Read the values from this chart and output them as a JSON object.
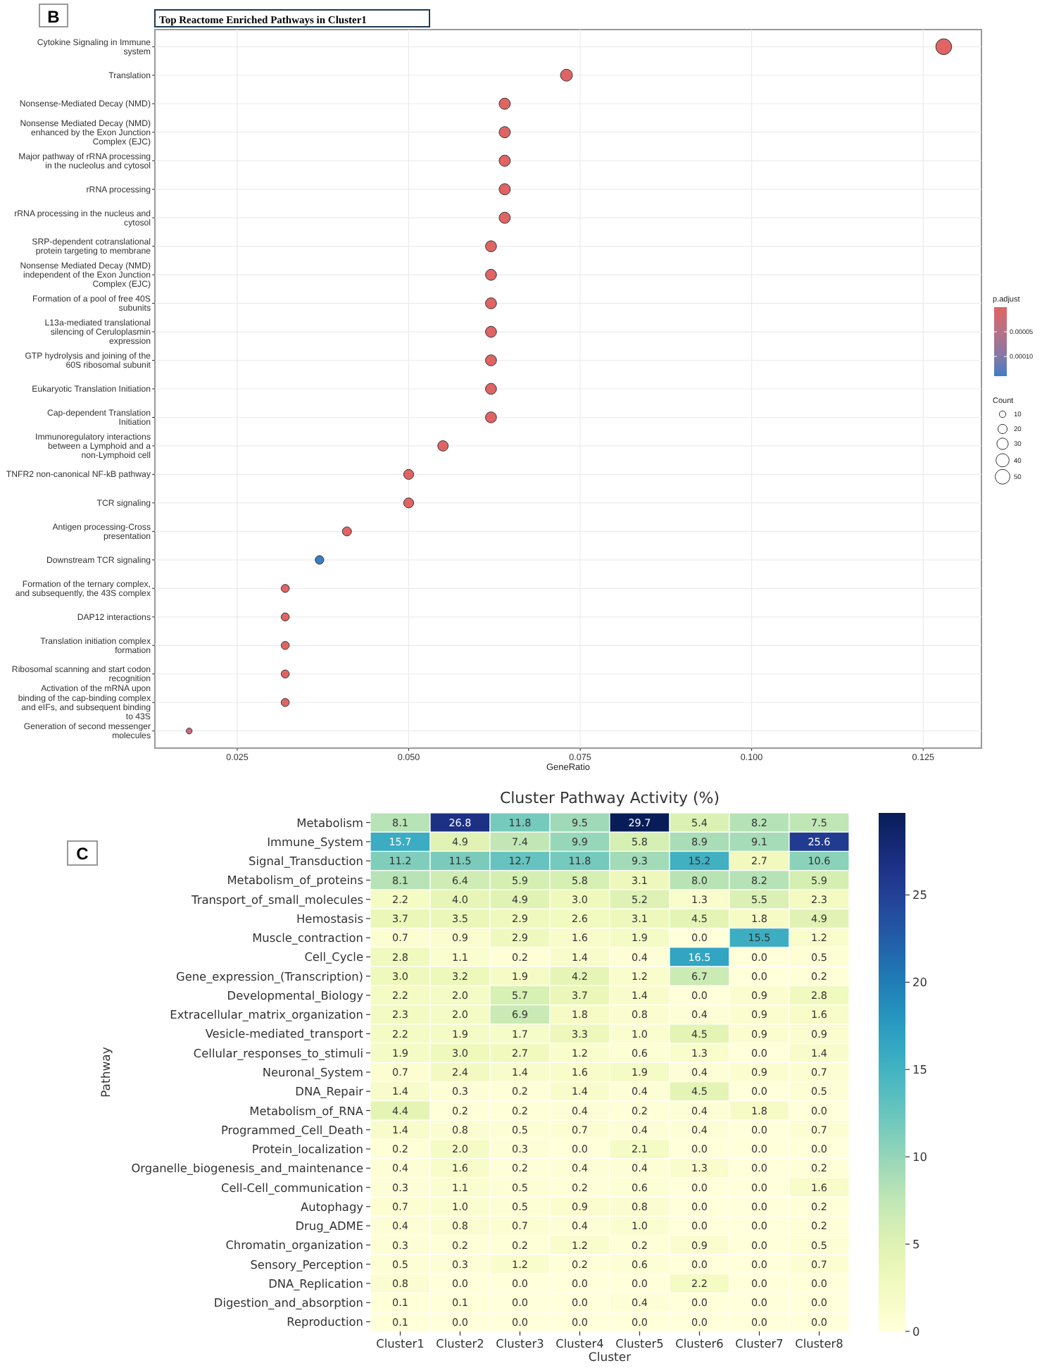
{
  "chart_data": [
    {
      "type": "bubble",
      "orientation": "horizontal",
      "title": "Top Reactome Enriched Pathways in Cluster1",
      "xlabel": "GeneRatio",
      "clabel": "p.adjust",
      "legend_title": "Count",
      "annotations": [
        "B"
      ],
      "grid": true,
      "marker": "circle",
      "categories": [
        "Cytokine Signaling in Immune system",
        "Translation",
        "Nonsense-Mediated Decay (NMD)",
        "Nonsense Mediated Decay (NMD) enhanced by the Exon Junction Complex (EJC)",
        "Major pathway of rRNA processing in the nucleolus and cytosol",
        "rRNA processing",
        "rRNA processing in the nucleus and cytosol",
        "SRP-dependent cotranslational protein targeting to membrane",
        "Nonsense Mediated Decay (NMD) independent of the Exon Junction Complex (EJC)",
        "Formation of a pool of free 40S subunits",
        "L13a-mediated translational silencing of Ceruloplasmin expression",
        "GTP hydrolysis and joining of the 60S ribosomal subunit",
        "Eukaryotic Translation Initiation",
        "Cap-dependent Translation Initiation",
        "Immunoregulatory interactions between a Lymphoid and a non-Lymphoid cell",
        "TNFR2 non-canonical NF-kB pathway",
        "TCR signaling",
        "Antigen processing-Cross presentation",
        "Downstream TCR signaling",
        "Formation of the ternary complex, and subsequently, the 43S complex",
        "DAP12 interactions",
        "Translation initiation complex formation",
        "Ribosomal scanning and start codon recognition",
        "Activation of the mRNA upon binding of the cap-binding complex and eIFs, and subsequent binding to 43S",
        "Generation of second messenger molecules"
      ],
      "values": [
        0.128,
        0.073,
        0.064,
        0.064,
        0.064,
        0.064,
        0.064,
        0.062,
        0.062,
        0.062,
        0.062,
        0.062,
        0.062,
        0.062,
        0.055,
        0.05,
        0.05,
        0.041,
        0.037,
        0.032,
        0.032,
        0.032,
        0.032,
        0.032,
        0.018
      ],
      "sizes": [
        58,
        33,
        29,
        29,
        29,
        29,
        29,
        28,
        28,
        28,
        28,
        28,
        28,
        28,
        25,
        23,
        23,
        19,
        17,
        15,
        15,
        15,
        15,
        15,
        8
      ],
      "size_legend": [
        10,
        20,
        30,
        40,
        50
      ],
      "cvalues": [
        0,
        0,
        0,
        0,
        0,
        0,
        0,
        0,
        0,
        0,
        0,
        0,
        0,
        0,
        0,
        0,
        0,
        0,
        0.00014,
        0,
        0,
        0,
        0,
        0,
        3e-05
      ],
      "clim": [
        0,
        0.00014
      ],
      "cticks": [
        {
          "value": 5e-05,
          "label": "0.00005"
        },
        {
          "value": 0.0001,
          "label": "0.00010"
        }
      ],
      "xlim": [
        0.013,
        0.1335
      ],
      "xticks": [
        0.025,
        {
          "value": 0.05,
          "label": "0.050"
        },
        0.075,
        {
          "value": 0.1,
          "label": "0.100"
        },
        0.125
      ]
    },
    {
      "type": "heatmap",
      "title": "Cluster Pathway Activity (%)",
      "xlabel": "Cluster",
      "ylabel": "Pathway",
      "annotations": [
        "C"
      ],
      "data_labels": true,
      "categories": [
        "Cluster1",
        "Cluster2",
        "Cluster3",
        "Cluster4",
        "Cluster5",
        "Cluster6",
        "Cluster7",
        "Cluster8"
      ],
      "y_categories": [
        "Metabolism",
        "Immune_System",
        "Signal_Transduction",
        "Metabolism_of_proteins",
        "Transport_of_small_molecules",
        "Hemostasis",
        "Muscle_contraction",
        "Cell_Cycle",
        "Gene_expression_(Transcription)",
        "Developmental_Biology",
        "Extracellular_matrix_organization",
        "Vesicle-mediated_transport",
        "Cellular_responses_to_stimuli",
        "Neuronal_System",
        "DNA_Repair",
        "Metabolism_of_RNA",
        "Programmed_Cell_Death",
        "Protein_localization",
        "Organelle_biogenesis_and_maintenance",
        "Cell-Cell_communication",
        "Autophagy",
        "Drug_ADME",
        "Chromatin_organization",
        "Sensory_Perception",
        "DNA_Replication",
        "Digestion_and_absorption",
        "Reproduction"
      ],
      "cells": [
        [
          8.1,
          26.8,
          11.8,
          9.5,
          29.7,
          5.4,
          8.2,
          7.5
        ],
        [
          15.7,
          4.9,
          7.4,
          9.9,
          5.8,
          8.9,
          9.1,
          25.6
        ],
        [
          11.2,
          11.5,
          12.7,
          11.8,
          9.3,
          15.2,
          2.7,
          10.6
        ],
        [
          8.1,
          6.4,
          5.9,
          5.8,
          3.1,
          8.0,
          8.2,
          5.9
        ],
        [
          2.2,
          4.0,
          4.9,
          3.0,
          5.2,
          1.3,
          5.5,
          2.3
        ],
        [
          3.7,
          3.5,
          2.9,
          2.6,
          3.1,
          4.5,
          1.8,
          4.9
        ],
        [
          0.7,
          0.9,
          2.9,
          1.6,
          1.9,
          0.0,
          15.5,
          1.2
        ],
        [
          2.8,
          1.1,
          0.2,
          1.4,
          0.4,
          16.5,
          0.0,
          0.5
        ],
        [
          3.0,
          3.2,
          1.9,
          4.2,
          1.2,
          6.7,
          0.0,
          0.2
        ],
        [
          2.2,
          2.0,
          5.7,
          3.7,
          1.4,
          0.0,
          0.9,
          2.8
        ],
        [
          2.3,
          2.0,
          6.9,
          1.8,
          0.8,
          0.4,
          0.9,
          1.6
        ],
        [
          2.2,
          1.9,
          1.7,
          3.3,
          1.0,
          4.5,
          0.9,
          0.9
        ],
        [
          1.9,
          3.0,
          2.7,
          1.2,
          0.6,
          1.3,
          0.0,
          1.4
        ],
        [
          0.7,
          2.4,
          1.4,
          1.6,
          1.9,
          0.4,
          0.9,
          0.7
        ],
        [
          1.4,
          0.3,
          0.2,
          1.4,
          0.4,
          4.5,
          0.0,
          0.5
        ],
        [
          4.4,
          0.2,
          0.2,
          0.4,
          0.2,
          0.4,
          1.8,
          0.0
        ],
        [
          1.4,
          0.8,
          0.5,
          0.7,
          0.4,
          0.4,
          0.0,
          0.7
        ],
        [
          0.2,
          2.0,
          0.3,
          0.0,
          2.1,
          0.0,
          0.0,
          0.0
        ],
        [
          0.4,
          1.6,
          0.2,
          0.4,
          0.4,
          1.3,
          0.0,
          0.2
        ],
        [
          0.3,
          1.1,
          0.5,
          0.2,
          0.6,
          0.0,
          0.0,
          1.6
        ],
        [
          0.7,
          1.0,
          0.5,
          0.9,
          0.8,
          0.0,
          0.0,
          0.2
        ],
        [
          0.4,
          0.8,
          0.7,
          0.4,
          1.0,
          0.0,
          0.0,
          0.2
        ],
        [
          0.3,
          0.2,
          0.2,
          1.2,
          0.2,
          0.9,
          0.0,
          0.5
        ],
        [
          0.5,
          0.3,
          1.2,
          0.2,
          0.6,
          0.0,
          0.0,
          0.7
        ],
        [
          0.8,
          0.0,
          0.0,
          0.0,
          0.0,
          2.2,
          0.0,
          0.0
        ],
        [
          0.1,
          0.1,
          0.0,
          0.0,
          0.4,
          0.0,
          0.0,
          0.0
        ],
        [
          0.1,
          0.0,
          0.0,
          0.0,
          0.0,
          0.0,
          0.0,
          0.0
        ]
      ],
      "cell_labels": [
        [
          "8.1",
          "26.8",
          "11.8",
          "9.5",
          "29.7",
          "5.4",
          "8.2",
          "7.5"
        ],
        [
          "15.7",
          "4.9",
          "7.4",
          "9.9",
          "5.8",
          "8.9",
          "9.1",
          "25.6"
        ],
        [
          "11.2",
          "11.5",
          "12.7",
          "11.8",
          "9.3",
          "15.2",
          "2.7",
          "10.6"
        ],
        [
          "8.1",
          "6.4",
          "5.9",
          "5.8",
          "3.1",
          "8.0",
          "8.2",
          "5.9"
        ],
        [
          "2.2",
          "4.0",
          "4.9",
          "3.0",
          "5.2",
          "1.3",
          "5.5",
          "2.3"
        ],
        [
          "3.7",
          "3.5",
          "2.9",
          "2.6",
          "3.1",
          "4.5",
          "1.8",
          "4.9"
        ],
        [
          "0.7",
          "0.9",
          "2.9",
          "1.6",
          "1.9",
          "0.0",
          "15.5",
          "1.2"
        ],
        [
          "2.8",
          "1.1",
          "0.2",
          "1.4",
          "0.4",
          "16.5",
          "0.0",
          "0.5"
        ],
        [
          "3.0",
          "3.2",
          "1.9",
          "4.2",
          "1.2",
          "6.7",
          "0.0",
          "0.2"
        ],
        [
          "2.2",
          "2.0",
          "5.7",
          "3.7",
          "1.4",
          "0.0",
          "0.9",
          "2.8"
        ],
        [
          "2.3",
          "2.0",
          "6.9",
          "1.8",
          "0.8",
          "0.4",
          "0.9",
          "1.6"
        ],
        [
          "2.2",
          "1.9",
          "1.7",
          "3.3",
          "1.0",
          "4.5",
          "0.9",
          "0.9"
        ],
        [
          "1.9",
          "3.0",
          "2.7",
          "1.2",
          "0.6",
          "1.3",
          "0.0",
          "1.4"
        ],
        [
          "0.7",
          "2.4",
          "1.4",
          "1.6",
          "1.9",
          "0.4",
          "0.9",
          "0.7"
        ],
        [
          "1.4",
          "0.3",
          "0.2",
          "1.4",
          "0.4",
          "4.5",
          "0.0",
          "0.5"
        ],
        [
          "4.4",
          "0.2",
          "0.2",
          "0.4",
          "0.2",
          "0.4",
          "1.8",
          "0.0"
        ],
        [
          "1.4",
          "0.8",
          "0.5",
          "0.7",
          "0.4",
          "0.4",
          "0.0",
          "0.7"
        ],
        [
          "0.2",
          "2.0",
          "0.3",
          "0.0",
          "2.1",
          "0.0",
          "0.0",
          "0.0"
        ],
        [
          "0.4",
          "1.6",
          "0.2",
          "0.4",
          "0.4",
          "1.3",
          "0.0",
          "0.2"
        ],
        [
          "0.3",
          "1.1",
          "0.5",
          "0.2",
          "0.6",
          "0.0",
          "0.0",
          "1.6"
        ],
        [
          "0.7",
          "1.0",
          "0.5",
          "0.9",
          "0.8",
          "0.0",
          "0.0",
          "0.2"
        ],
        [
          "0.4",
          "0.8",
          "0.7",
          "0.4",
          "1.0",
          "0.0",
          "0.0",
          "0.2"
        ],
        [
          "0.3",
          "0.2",
          "0.2",
          "1.2",
          "0.2",
          "0.9",
          "0.0",
          "0.5"
        ],
        [
          "0.5",
          "0.3",
          "1.2",
          "0.2",
          "0.6",
          "0.0",
          "0.0",
          "0.7"
        ],
        [
          "0.8",
          "0.0",
          "0.0",
          "0.0",
          "0.0",
          "2.2",
          "0.0",
          "0.0"
        ],
        [
          "0.1",
          "0.1",
          "0.0",
          "0.0",
          "0.4",
          "0.0",
          "0.0",
          "0.0"
        ],
        [
          "0.1",
          "0.0",
          "0.0",
          "0.0",
          "0.0",
          "0.0",
          "0.0",
          "0.0"
        ]
      ],
      "clim": [
        0,
        29.7
      ],
      "cticks": [
        0,
        5,
        10,
        15,
        20,
        25
      ]
    }
  ]
}
